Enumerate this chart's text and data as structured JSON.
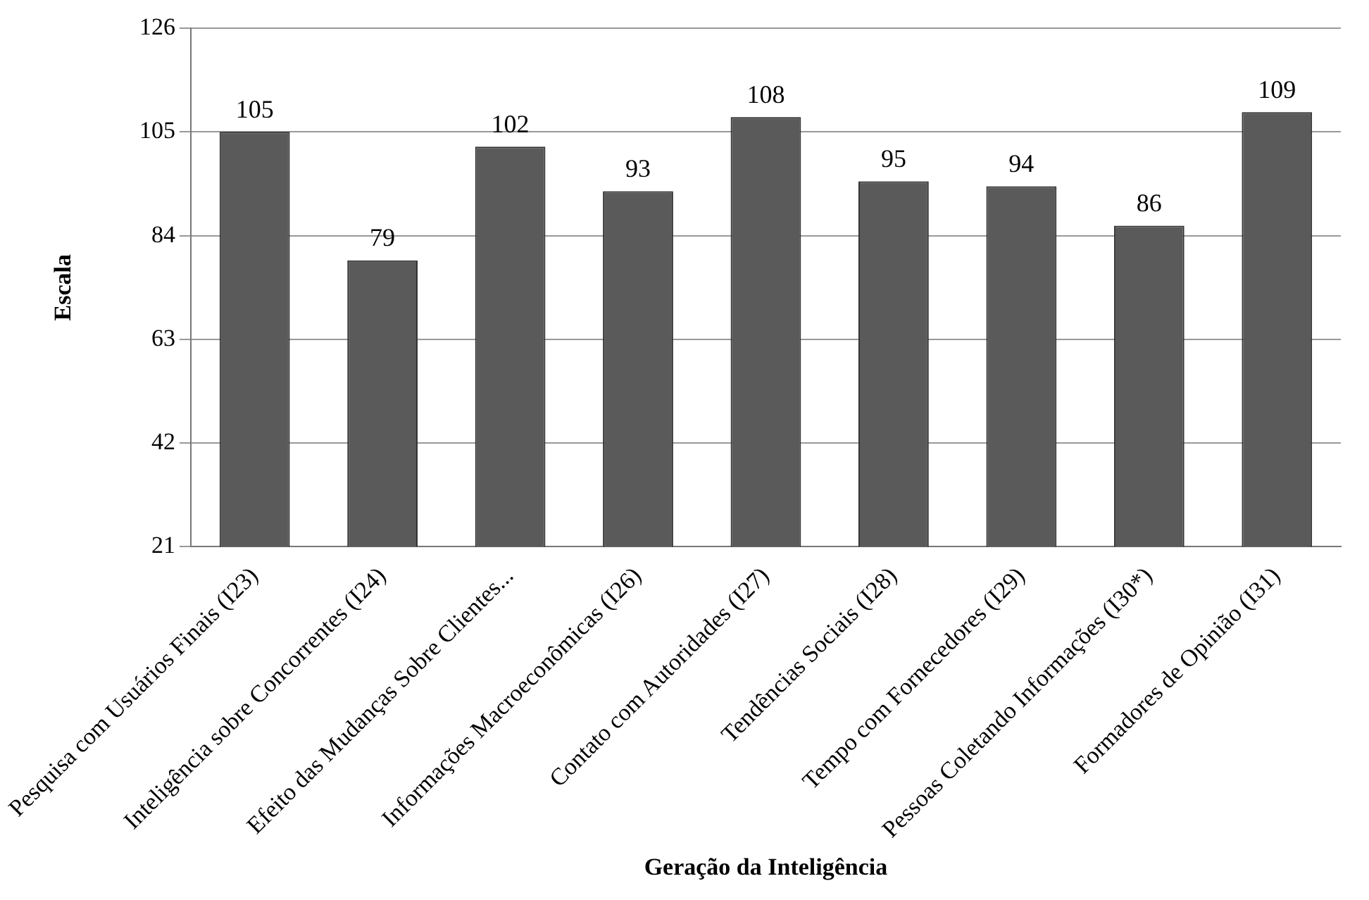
{
  "chart_data": {
    "type": "bar",
    "xlabel": "Geração da Inteligência",
    "ylabel": "Escala",
    "categories": [
      "Pesquisa com Usuários Finais (I23)",
      "Inteligência sobre Concorrentes (I24)",
      "Efeito das Mudanças Sobre Clientes...",
      "Informações Macroeconômicas (I26)",
      "Contato com Autoridades (I27)",
      "Tendências Sociais (I28)",
      "Tempo com Fornecedores (I29)",
      "Pessoas Coletando Informações (I30*)",
      "Formadores de Opinião (I31)"
    ],
    "values": [
      105,
      79,
      102,
      93,
      108,
      95,
      94,
      86,
      109
    ],
    "color": "#5a5a5a",
    "ylim": [
      21,
      126
    ],
    "yticks": [
      21,
      42,
      63,
      84,
      105,
      126
    ],
    "grid": "y",
    "data_labels": true
  }
}
